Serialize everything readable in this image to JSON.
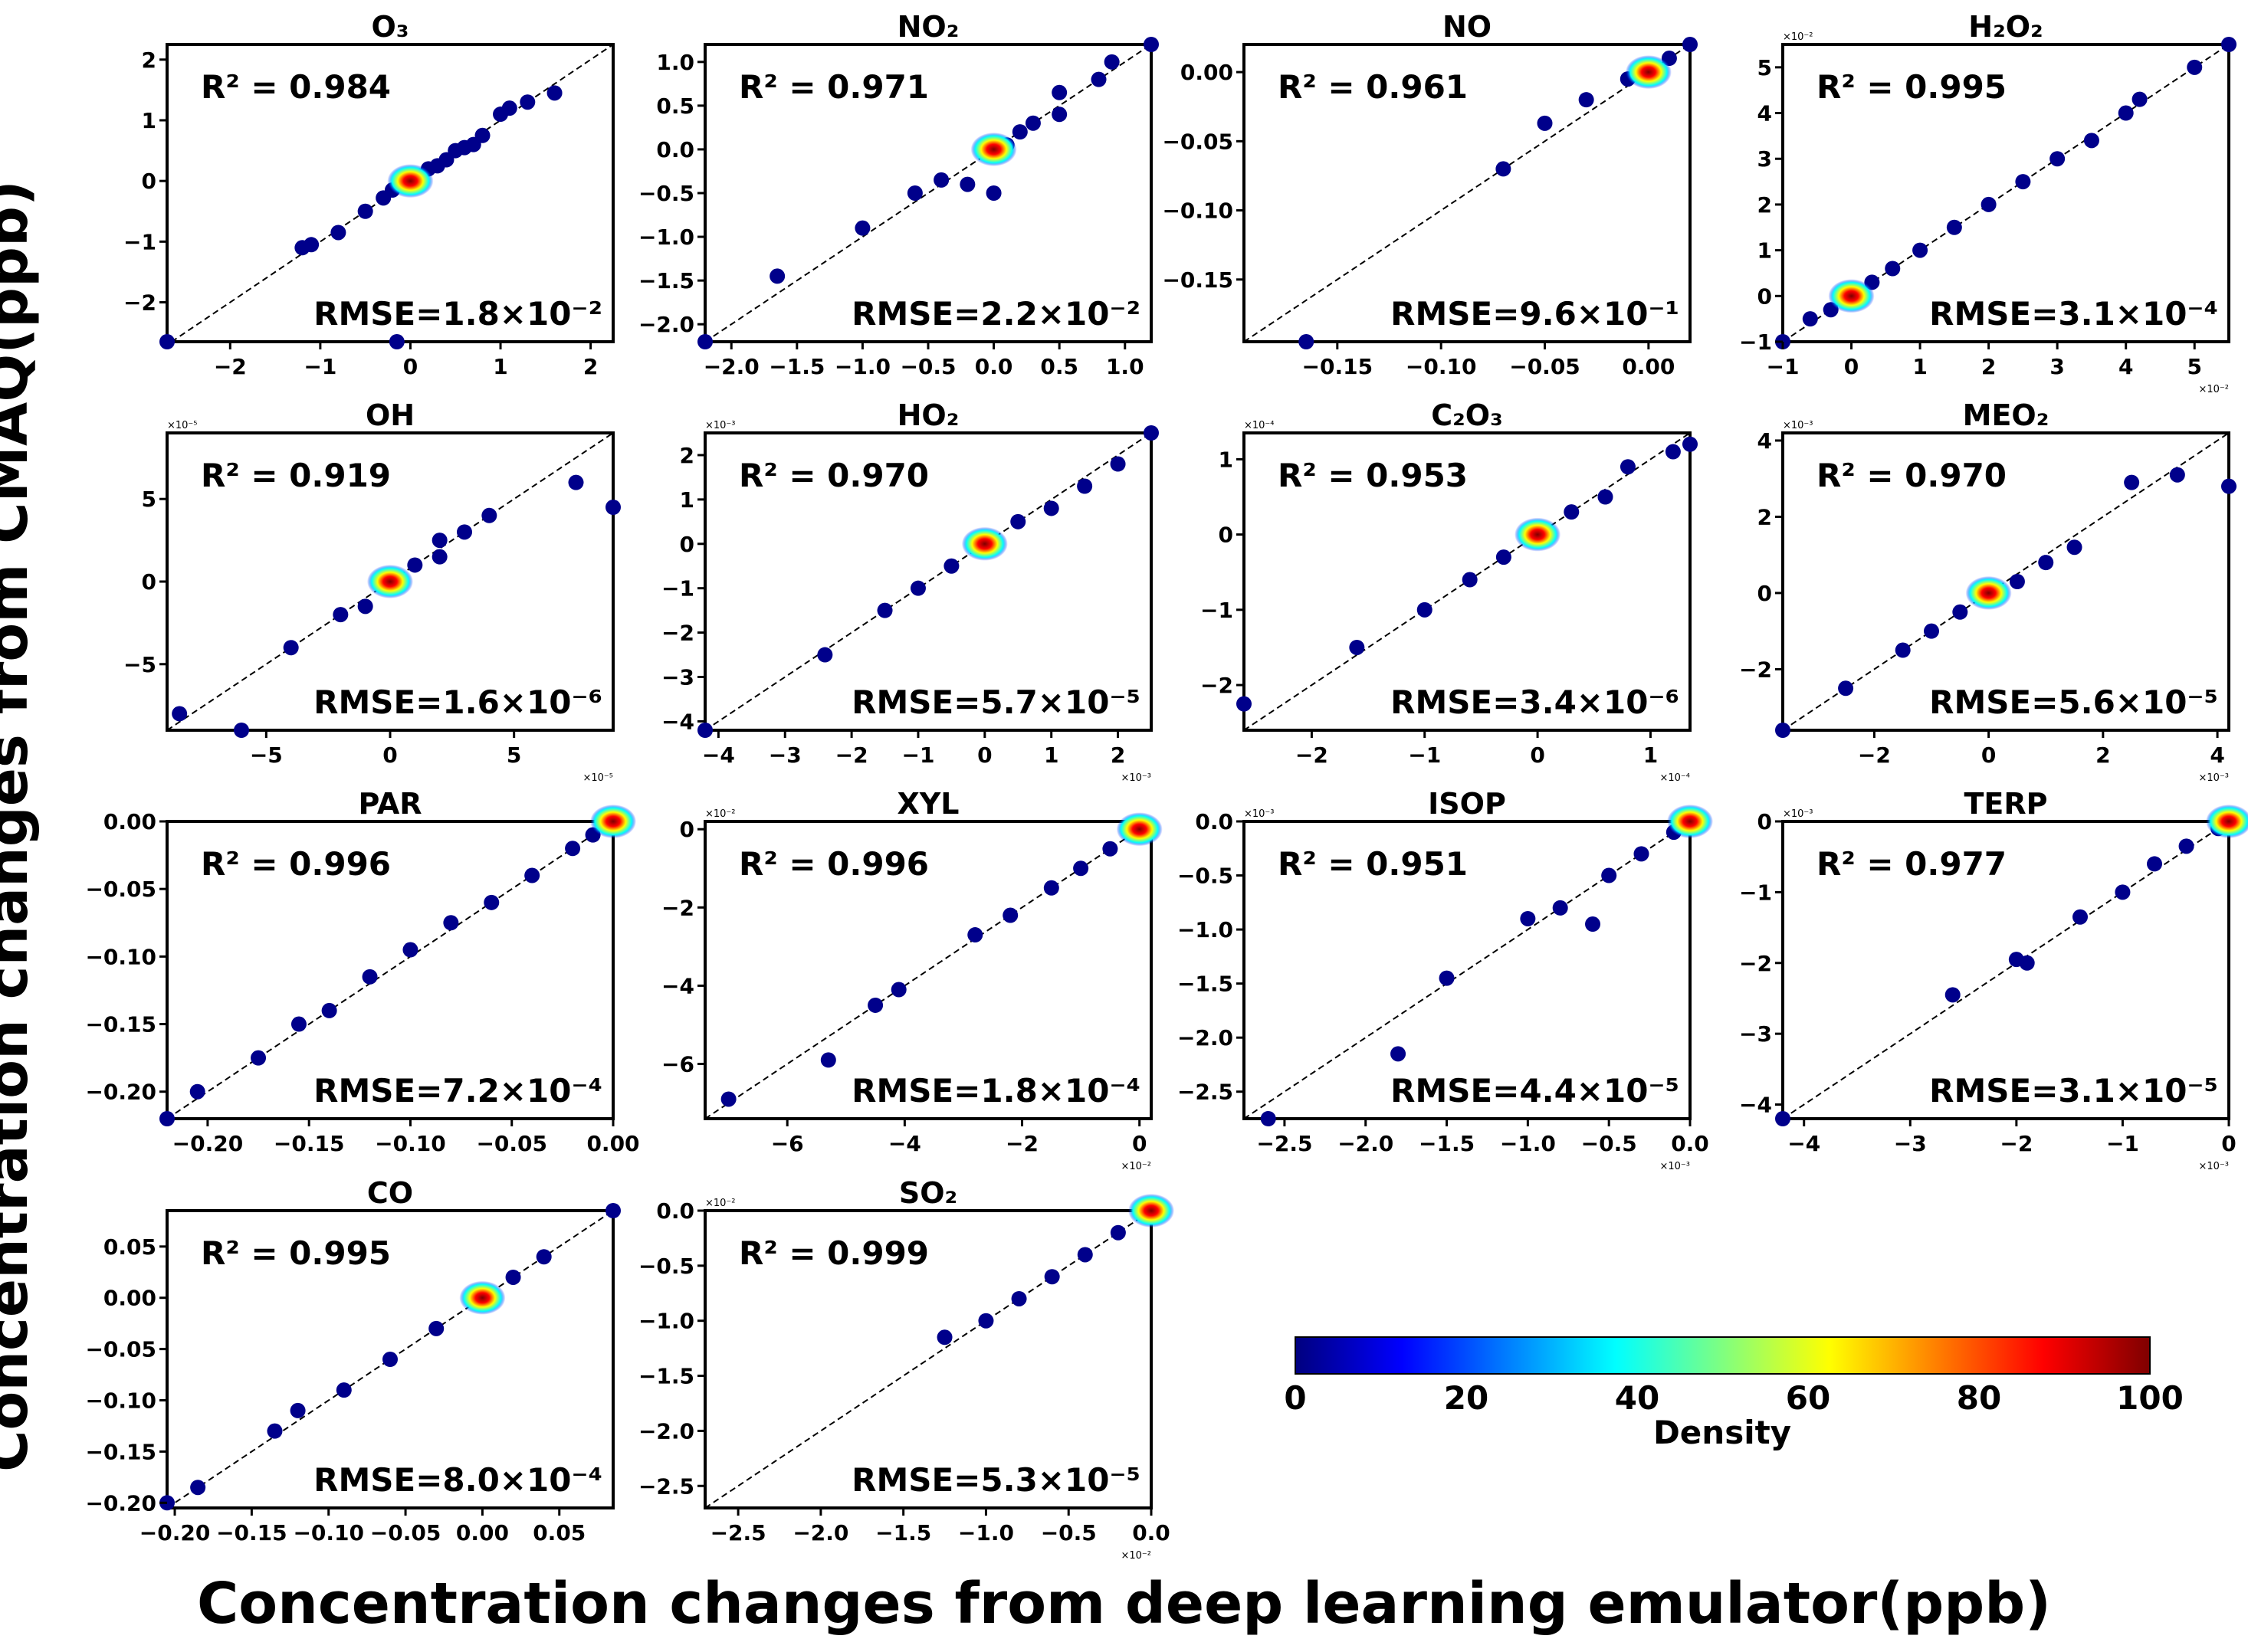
{
  "figure": {
    "ylabel": "Concentration changes from CMAQ(ppb)",
    "xlabel": "Concentration changes from deep learning emulator(ppb)"
  },
  "colorbar": {
    "label": "Density",
    "ticks": [
      "0",
      "20",
      "40",
      "60",
      "80",
      "100"
    ],
    "colors": [
      "#00007f",
      "#0000ff",
      "#007fff",
      "#00ffff",
      "#7fff7f",
      "#ffff00",
      "#ff7f00",
      "#ff0000",
      "#7f0000"
    ]
  },
  "chart_data": [
    {
      "type": "scatter",
      "title": "O₃",
      "r2": "R² = 0.984",
      "rmse": "RMSE=1.8×10⁻²",
      "scale": "",
      "xlim": [
        -2.7,
        2.25
      ],
      "ylim": [
        -2.65,
        2.25
      ],
      "xticks": [
        -2,
        -1,
        0,
        1,
        2
      ],
      "xtick_labels": [
        "−2",
        "−1",
        "0",
        "1",
        "2"
      ],
      "yticks": [
        -2,
        -1,
        0,
        1,
        2
      ],
      "ytick_labels": [
        "−2",
        "−1",
        "0",
        "1",
        "2"
      ],
      "points": [
        [
          -2.7,
          -2.65
        ],
        [
          -1.2,
          -1.1
        ],
        [
          -1.1,
          -1.05
        ],
        [
          -0.8,
          -0.85
        ],
        [
          -0.5,
          -0.5
        ],
        [
          -0.3,
          -0.28
        ],
        [
          -0.2,
          -0.15
        ],
        [
          -0.1,
          -0.05
        ],
        [
          0,
          0
        ],
        [
          0.1,
          0.08
        ],
        [
          0.2,
          0.2
        ],
        [
          0.3,
          0.25
        ],
        [
          0.4,
          0.35
        ],
        [
          0.5,
          0.5
        ],
        [
          0.6,
          0.55
        ],
        [
          0.7,
          0.6
        ],
        [
          0.8,
          0.75
        ],
        [
          1.0,
          1.1
        ],
        [
          1.1,
          1.2
        ],
        [
          1.3,
          1.3
        ],
        [
          1.6,
          1.45
        ],
        [
          -0.15,
          -2.65
        ]
      ]
    },
    {
      "type": "scatter",
      "title": "NO₂",
      "r2": "R² = 0.971",
      "rmse": "RMSE=2.2×10⁻²",
      "scale": "",
      "xlim": [
        -2.2,
        1.2
      ],
      "ylim": [
        -2.2,
        1.2
      ],
      "xticks": [
        -2.0,
        -1.5,
        -1.0,
        -0.5,
        0.0,
        0.5,
        1.0
      ],
      "xtick_labels": [
        "−2.0",
        "−1.5",
        "−1.0",
        "−0.5",
        "0.0",
        "0.5",
        "1.0"
      ],
      "yticks": [
        -2.0,
        -1.5,
        -1.0,
        -0.5,
        0.0,
        0.5,
        1.0
      ],
      "ytick_labels": [
        "−2.0",
        "−1.5",
        "−1.0",
        "−0.5",
        "0.0",
        "0.5",
        "1.0"
      ],
      "points": [
        [
          -2.2,
          -2.2
        ],
        [
          -1.65,
          -1.45
        ],
        [
          -1.0,
          -0.9
        ],
        [
          -0.6,
          -0.5
        ],
        [
          -0.4,
          -0.35
        ],
        [
          -0.2,
          -0.4
        ],
        [
          0,
          -0.5
        ],
        [
          0,
          0
        ],
        [
          0.1,
          0.05
        ],
        [
          0.2,
          0.2
        ],
        [
          0.3,
          0.3
        ],
        [
          0.5,
          0.4
        ],
        [
          0.5,
          0.65
        ],
        [
          0.8,
          0.8
        ],
        [
          0.9,
          1.0
        ],
        [
          1.2,
          1.2
        ]
      ]
    },
    {
      "type": "scatter",
      "title": "NO",
      "r2": "R² = 0.961",
      "rmse": "RMSE=9.6×10⁻¹",
      "scale": "",
      "xlim": [
        -0.195,
        0.02
      ],
      "ylim": [
        -0.195,
        0.02
      ],
      "xticks": [
        -0.15,
        -0.1,
        -0.05,
        0.0
      ],
      "xtick_labels": [
        "−0.15",
        "−0.10",
        "−0.05",
        "0.00"
      ],
      "yticks": [
        -0.15,
        -0.1,
        -0.05,
        0.0
      ],
      "ytick_labels": [
        "−0.15",
        "−0.10",
        "−0.05",
        "0.00"
      ],
      "points": [
        [
          -0.165,
          -0.195
        ],
        [
          -0.07,
          -0.07
        ],
        [
          -0.05,
          -0.037
        ],
        [
          -0.03,
          -0.02
        ],
        [
          -0.01,
          -0.005
        ],
        [
          0,
          0
        ],
        [
          0.01,
          0.01
        ],
        [
          0.02,
          0.02
        ]
      ]
    },
    {
      "type": "scatter",
      "title": "H₂O₂",
      "r2": "R² = 0.995",
      "rmse": "RMSE=3.1×10⁻⁴",
      "scale": "×10⁻²",
      "xlim": [
        -1.0,
        5.5
      ],
      "ylim": [
        -1.0,
        5.5
      ],
      "xticks": [
        -1,
        0,
        1,
        2,
        3,
        4,
        5
      ],
      "xtick_labels": [
        "−1",
        "0",
        "1",
        "2",
        "3",
        "4",
        "5"
      ],
      "yticks": [
        -1,
        0,
        1,
        2,
        3,
        4,
        5
      ],
      "ytick_labels": [
        "−1",
        "0",
        "1",
        "2",
        "3",
        "4",
        "5"
      ],
      "points": [
        [
          -1,
          -1
        ],
        [
          -0.6,
          -0.5
        ],
        [
          -0.3,
          -0.3
        ],
        [
          0,
          0
        ],
        [
          0.3,
          0.3
        ],
        [
          0.6,
          0.6
        ],
        [
          1,
          1
        ],
        [
          1.5,
          1.5
        ],
        [
          2,
          2
        ],
        [
          2.5,
          2.5
        ],
        [
          3,
          3
        ],
        [
          3.5,
          3.4
        ],
        [
          4,
          4
        ],
        [
          4.2,
          4.3
        ],
        [
          5,
          5
        ],
        [
          5.5,
          5.5
        ]
      ]
    },
    {
      "type": "scatter",
      "title": "OH",
      "r2": "R² = 0.919",
      "rmse": "RMSE=1.6×10⁻⁶",
      "scale": "×10⁻⁵",
      "xlim": [
        -9,
        9
      ],
      "ylim": [
        -9,
        9
      ],
      "xticks": [
        -5,
        0,
        5
      ],
      "xtick_labels": [
        "−5",
        "0",
        "5"
      ],
      "yticks": [
        -5,
        0,
        5
      ],
      "ytick_labels": [
        "−5",
        "0",
        "5"
      ],
      "points": [
        [
          -8.5,
          -8
        ],
        [
          -6,
          -9
        ],
        [
          -4,
          -4
        ],
        [
          -2,
          -2
        ],
        [
          -1,
          -1.5
        ],
        [
          0,
          0
        ],
        [
          1,
          1
        ],
        [
          2,
          1.5
        ],
        [
          2,
          2.5
        ],
        [
          3,
          3
        ],
        [
          4,
          4
        ],
        [
          7.5,
          6
        ],
        [
          9,
          4.5
        ]
      ]
    },
    {
      "type": "scatter",
      "title": "HO₂",
      "r2": "R² = 0.970",
      "rmse": "RMSE=5.7×10⁻⁵",
      "scale": "×10⁻³",
      "xlim": [
        -4.2,
        2.5
      ],
      "ylim": [
        -4.2,
        2.5
      ],
      "xticks": [
        -4,
        -3,
        -2,
        -1,
        0,
        1,
        2
      ],
      "xtick_labels": [
        "−4",
        "−3",
        "−2",
        "−1",
        "0",
        "1",
        "2"
      ],
      "yticks": [
        -4,
        -3,
        -2,
        -1,
        0,
        1,
        2
      ],
      "ytick_labels": [
        "−4",
        "−3",
        "−2",
        "−1",
        "0",
        "1",
        "2"
      ],
      "points": [
        [
          -4.2,
          -4.2
        ],
        [
          -2.4,
          -2.5
        ],
        [
          -1.5,
          -1.5
        ],
        [
          -1,
          -1
        ],
        [
          -0.5,
          -0.5
        ],
        [
          0,
          0
        ],
        [
          0.5,
          0.5
        ],
        [
          1,
          0.8
        ],
        [
          1.5,
          1.3
        ],
        [
          2,
          1.8
        ],
        [
          2.5,
          2.5
        ]
      ]
    },
    {
      "type": "scatter",
      "title": "C₂O₃",
      "r2": "R² = 0.953",
      "rmse": "RMSE=3.4×10⁻⁶",
      "scale": "×10⁻⁴",
      "xlim": [
        -2.6,
        1.35
      ],
      "ylim": [
        -2.6,
        1.35
      ],
      "xticks": [
        -2,
        -1,
        0,
        1
      ],
      "xtick_labels": [
        "−2",
        "−1",
        "0",
        "1"
      ],
      "yticks": [
        -2,
        -1,
        0,
        1
      ],
      "ytick_labels": [
        "−2",
        "−1",
        "0",
        "1"
      ],
      "points": [
        [
          -2.6,
          -2.25
        ],
        [
          -1.6,
          -1.5
        ],
        [
          -1.0,
          -1.0
        ],
        [
          -0.6,
          -0.6
        ],
        [
          -0.3,
          -0.3
        ],
        [
          0,
          0
        ],
        [
          0.3,
          0.3
        ],
        [
          0.6,
          0.5
        ],
        [
          0.8,
          0.9
        ],
        [
          1.2,
          1.1
        ],
        [
          1.35,
          1.2
        ]
      ]
    },
    {
      "type": "scatter",
      "title": "MEO₂",
      "r2": "R² = 0.970",
      "rmse": "RMSE=5.6×10⁻⁵",
      "scale": "×10⁻³",
      "xlim": [
        -3.6,
        4.2
      ],
      "ylim": [
        -3.6,
        4.2
      ],
      "xticks": [
        -2,
        0,
        2,
        4
      ],
      "xtick_labels": [
        "−2",
        "0",
        "2",
        "4"
      ],
      "yticks": [
        -2,
        0,
        2,
        4
      ],
      "ytick_labels": [
        "−2",
        "0",
        "2",
        "4"
      ],
      "points": [
        [
          -3.6,
          -3.6
        ],
        [
          -2.5,
          -2.5
        ],
        [
          -1.5,
          -1.5
        ],
        [
          -1,
          -1
        ],
        [
          -0.5,
          -0.5
        ],
        [
          0,
          0
        ],
        [
          0.5,
          0.3
        ],
        [
          1,
          0.8
        ],
        [
          1.5,
          1.2
        ],
        [
          2.5,
          2.9
        ],
        [
          3.3,
          3.1
        ],
        [
          4.2,
          2.8
        ]
      ]
    },
    {
      "type": "scatter",
      "title": "PAR",
      "r2": "R² = 0.996",
      "rmse": "RMSE=7.2×10⁻⁴",
      "scale": "",
      "xlim": [
        -0.22,
        0.0
      ],
      "ylim": [
        -0.22,
        0.0
      ],
      "xticks": [
        -0.2,
        -0.15,
        -0.1,
        -0.05,
        0.0
      ],
      "xtick_labels": [
        "−0.20",
        "−0.15",
        "−0.10",
        "−0.05",
        "0.00"
      ],
      "yticks": [
        -0.2,
        -0.15,
        -0.1,
        -0.05,
        0.0
      ],
      "ytick_labels": [
        "−0.20",
        "−0.15",
        "−0.10",
        "−0.05",
        "0.00"
      ],
      "points": [
        [
          -0.22,
          -0.22
        ],
        [
          -0.205,
          -0.2
        ],
        [
          -0.175,
          -0.175
        ],
        [
          -0.155,
          -0.15
        ],
        [
          -0.14,
          -0.14
        ],
        [
          -0.12,
          -0.115
        ],
        [
          -0.1,
          -0.095
        ],
        [
          -0.08,
          -0.075
        ],
        [
          -0.06,
          -0.06
        ],
        [
          -0.04,
          -0.04
        ],
        [
          -0.02,
          -0.02
        ],
        [
          -0.01,
          -0.01
        ],
        [
          0,
          0
        ]
      ]
    },
    {
      "type": "scatter",
      "title": "XYL",
      "r2": "R² = 0.996",
      "rmse": "RMSE=1.8×10⁻⁴",
      "scale": "×10⁻²",
      "xlim": [
        -7.4,
        0.2
      ],
      "ylim": [
        -7.4,
        0.2
      ],
      "xticks": [
        -6,
        -4,
        -2,
        0
      ],
      "xtick_labels": [
        "−6",
        "−4",
        "−2",
        "0"
      ],
      "yticks": [
        -6,
        -4,
        -2,
        0
      ],
      "ytick_labels": [
        "−6",
        "−4",
        "−2",
        "0"
      ],
      "points": [
        [
          -7,
          -6.9
        ],
        [
          -5.3,
          -5.9
        ],
        [
          -4.5,
          -4.5
        ],
        [
          -4.1,
          -4.1
        ],
        [
          -2.8,
          -2.7
        ],
        [
          -2.2,
          -2.2
        ],
        [
          -1.5,
          -1.5
        ],
        [
          -1,
          -1
        ],
        [
          -0.5,
          -0.5
        ],
        [
          0,
          0
        ]
      ]
    },
    {
      "type": "scatter",
      "title": "ISOP",
      "r2": "R² = 0.951",
      "rmse": "RMSE=4.4×10⁻⁵",
      "scale": "×10⁻³",
      "xlim": [
        -2.75,
        0.0
      ],
      "ylim": [
        -2.75,
        0.0
      ],
      "xticks": [
        -2.5,
        -2.0,
        -1.5,
        -1.0,
        -0.5,
        0.0
      ],
      "xtick_labels": [
        "−2.5",
        "−2.0",
        "−1.5",
        "−1.0",
        "−0.5",
        "0.0"
      ],
      "yticks": [
        -2.5,
        -2.0,
        -1.5,
        -1.0,
        -0.5,
        0.0
      ],
      "ytick_labels": [
        "−2.5",
        "−2.0",
        "−1.5",
        "−1.0",
        "−0.5",
        "0.0"
      ],
      "points": [
        [
          -2.6,
          -2.75
        ],
        [
          -1.8,
          -2.15
        ],
        [
          -1.5,
          -1.45
        ],
        [
          -1.0,
          -0.9
        ],
        [
          -0.8,
          -0.8
        ],
        [
          -0.6,
          -0.95
        ],
        [
          -0.5,
          -0.5
        ],
        [
          -0.3,
          -0.3
        ],
        [
          -0.1,
          -0.1
        ],
        [
          0,
          0
        ]
      ]
    },
    {
      "type": "scatter",
      "title": "TERP",
      "r2": "R² = 0.977",
      "rmse": "RMSE=3.1×10⁻⁵",
      "scale": "×10⁻³",
      "xlim": [
        -4.2,
        0.0
      ],
      "ylim": [
        -4.2,
        0.0
      ],
      "xticks": [
        -4,
        -3,
        -2,
        -1,
        0
      ],
      "xtick_labels": [
        "−4",
        "−3",
        "−2",
        "−1",
        "0"
      ],
      "yticks": [
        -4,
        -3,
        -2,
        -1,
        0
      ],
      "ytick_labels": [
        "−4",
        "−3",
        "−2",
        "−1",
        "0"
      ],
      "points": [
        [
          -4.2,
          -4.2
        ],
        [
          -2.6,
          -2.45
        ],
        [
          -2.0,
          -1.95
        ],
        [
          -1.9,
          -2.0
        ],
        [
          -1.4,
          -1.35
        ],
        [
          -1.0,
          -1.0
        ],
        [
          -0.7,
          -0.6
        ],
        [
          -0.4,
          -0.35
        ],
        [
          -0.1,
          -0.1
        ],
        [
          0,
          0
        ]
      ]
    },
    {
      "type": "scatter",
      "title": "CO",
      "r2": "R² = 0.995",
      "rmse": "RMSE=8.0×10⁻⁴",
      "scale": "",
      "xlim": [
        -0.205,
        0.085
      ],
      "ylim": [
        -0.205,
        0.085
      ],
      "xticks": [
        -0.2,
        -0.15,
        -0.1,
        -0.05,
        0.0,
        0.05
      ],
      "xtick_labels": [
        "−0.20",
        "−0.15",
        "−0.10",
        "−0.05",
        "0.00",
        "0.05"
      ],
      "yticks": [
        -0.2,
        -0.15,
        -0.1,
        -0.05,
        0.0,
        0.05
      ],
      "ytick_labels": [
        "−0.20",
        "−0.15",
        "−0.10",
        "−0.05",
        "0.00",
        "0.05"
      ],
      "points": [
        [
          -0.205,
          -0.2
        ],
        [
          -0.185,
          -0.185
        ],
        [
          -0.135,
          -0.13
        ],
        [
          -0.12,
          -0.11
        ],
        [
          -0.09,
          -0.09
        ],
        [
          -0.06,
          -0.06
        ],
        [
          -0.03,
          -0.03
        ],
        [
          0,
          0
        ],
        [
          0.02,
          0.02
        ],
        [
          0.04,
          0.04
        ],
        [
          0.085,
          0.085
        ]
      ]
    },
    {
      "type": "scatter",
      "title": "SO₂",
      "r2": "R² = 0.999",
      "rmse": "RMSE=5.3×10⁻⁵",
      "scale": "×10⁻²",
      "xlim": [
        -2.7,
        0.0
      ],
      "ylim": [
        -2.7,
        0.0
      ],
      "xticks": [
        -2.5,
        -2.0,
        -1.5,
        -1.0,
        -0.5,
        0.0
      ],
      "xtick_labels": [
        "−2.5",
        "−2.0",
        "−1.5",
        "−1.0",
        "−0.5",
        "0.0"
      ],
      "yticks": [
        -2.5,
        -2.0,
        -1.5,
        -1.0,
        -0.5,
        0.0
      ],
      "ytick_labels": [
        "−2.5",
        "−2.0",
        "−1.5",
        "−1.0",
        "−0.5",
        "0.0"
      ],
      "points": [
        [
          -1.25,
          -1.15
        ],
        [
          -1.0,
          -1.0
        ],
        [
          -0.8,
          -0.8
        ],
        [
          -0.6,
          -0.6
        ],
        [
          -0.4,
          -0.4
        ],
        [
          -0.2,
          -0.2
        ],
        [
          0,
          0
        ]
      ]
    }
  ]
}
